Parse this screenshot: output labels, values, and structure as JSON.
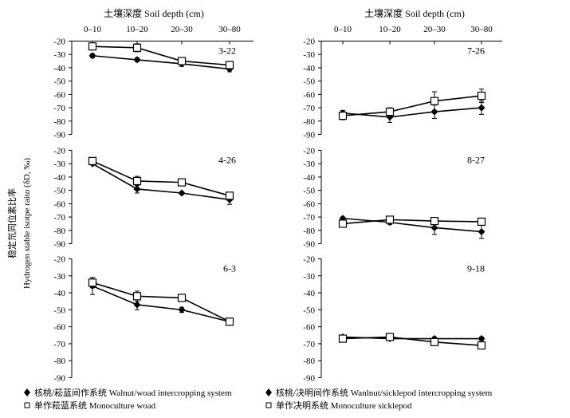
{
  "figure": {
    "y_axis_label_cn": "稳定氘同位素比率",
    "y_axis_label_en": "Hydrogen stable isotpe raito (δD, ‰)",
    "x_axis_title": "土壤深度 Soil depth (cm)"
  },
  "legend": {
    "items": [
      {
        "key": "walnut_woad",
        "marker": "filled-diamond",
        "label": "核桃/菘蓝间作系统 Walnut/woad intercropping system"
      },
      {
        "key": "walnut_sicklepod",
        "marker": "filled-diamond",
        "label": "核桃/决明间作系统 Wanlnut/sicklepod intercropping system"
      },
      {
        "key": "mono_woad",
        "marker": "open-square",
        "label": "单作菘蓝系统 Monoculture woad"
      },
      {
        "key": "mono_sicklepod",
        "marker": "open-square",
        "label": "单作决明系统 Monoculture sicklepod"
      }
    ]
  },
  "chart_data": [
    {
      "type": "line",
      "panel_label": "3-22",
      "categories": [
        "0–10",
        "10–20",
        "20–30",
        "30–80"
      ],
      "yticks": [
        "-20",
        "-30",
        "-40",
        "-50",
        "-60",
        "-70",
        "-80",
        "-90"
      ],
      "ylim": [
        -90,
        -20
      ],
      "y_ticks": [
        -20,
        -30,
        -40,
        -50,
        -60,
        -70,
        -80,
        -90
      ],
      "xlabel": "土壤深度 Soil depth (cm)",
      "series": [
        {
          "name": "核桃/菘蓝间作系统 Walnut/woad intercropping system",
          "marker": "diamond",
          "values": [
            -31,
            -34,
            -37,
            -41
          ],
          "errors": [
            1.5,
            1.5,
            2,
            2
          ]
        },
        {
          "name": "单作菘蓝系统 Monoculture woad",
          "marker": "square",
          "values": [
            -24,
            -25,
            -35,
            -38
          ],
          "errors": [
            1,
            3,
            1.5,
            1.5
          ]
        }
      ]
    },
    {
      "type": "line",
      "panel_label": "4-26",
      "categories": [
        "0–10",
        "10–20",
        "20–30",
        "30–80"
      ],
      "yticks": [
        "-20",
        "-30",
        "-40",
        "-50",
        "-60",
        "-70",
        "-80",
        "-90"
      ],
      "ylim": [
        -90,
        -20
      ],
      "y_ticks": [
        -20,
        -30,
        -40,
        -50,
        -60,
        -70,
        -80,
        -90
      ],
      "series": [
        {
          "name": "核桃/菘蓝间作系统 Walnut/woad intercropping system",
          "marker": "diamond",
          "values": [
            -30,
            -49,
            -52,
            -57
          ],
          "errors": [
            1,
            3,
            1,
            3.5
          ]
        },
        {
          "name": "单作菘蓝系统 Monoculture woad",
          "marker": "square",
          "values": [
            -28,
            -43,
            -44,
            -54
          ],
          "errors": [
            2,
            3.5,
            1.5,
            2
          ]
        }
      ]
    },
    {
      "type": "line",
      "panel_label": "6-3",
      "categories": [
        "0–10",
        "10–20",
        "20–30",
        "30–80"
      ],
      "yticks": [
        "-20",
        "-30",
        "-40",
        "-50",
        "-60",
        "-70",
        "-80",
        "-90"
      ],
      "ylim": [
        -90,
        -20
      ],
      "y_ticks": [
        -20,
        -30,
        -40,
        -50,
        -60,
        -70,
        -80,
        -90
      ],
      "series": [
        {
          "name": "核桃/菘蓝间作系统 Walnut/woad intercropping system",
          "marker": "diamond",
          "values": [
            -36,
            -47,
            -50,
            -57
          ],
          "errors": [
            5,
            3,
            1.5,
            1
          ]
        },
        {
          "name": "单作菘蓝系统 Monoculture woad",
          "marker": "square",
          "values": [
            -34,
            -42,
            -43,
            -57
          ],
          "errors": [
            3,
            3,
            1,
            1
          ]
        }
      ]
    },
    {
      "type": "line",
      "panel_label": "7-26",
      "categories": [
        "0–10",
        "10–20",
        "20–30",
        "30–80"
      ],
      "yticks": [
        "-20",
        "-30",
        "-40",
        "-50",
        "-60",
        "-70",
        "-80",
        "-90"
      ],
      "ylim": [
        -90,
        -20
      ],
      "y_ticks": [
        -20,
        -30,
        -40,
        -50,
        -60,
        -70,
        -80,
        -90
      ],
      "xlabel": "土壤深度 Soil depth (cm)",
      "series": [
        {
          "name": "核桃/决明间作系统 Wanlnut/sicklepod intercropping system",
          "marker": "diamond",
          "values": [
            -74,
            -77,
            -73,
            -70
          ],
          "errors": [
            2,
            4,
            5,
            5
          ]
        },
        {
          "name": "单作决明系统 Monoculture sicklepod",
          "marker": "square",
          "values": [
            -76,
            -73,
            -65,
            -61
          ],
          "errors": [
            3,
            3,
            7,
            5
          ]
        }
      ]
    },
    {
      "type": "line",
      "panel_label": "8-27",
      "categories": [
        "0–10",
        "10–20",
        "20–30",
        "30–80"
      ],
      "yticks": [
        "-20",
        "-30",
        "-40",
        "-50",
        "-60",
        "-70",
        "-80",
        "-90"
      ],
      "ylim": [
        -90,
        -20
      ],
      "y_ticks": [
        -20,
        -30,
        -40,
        -50,
        -60,
        -70,
        -80,
        -90
      ],
      "series": [
        {
          "name": "核桃/决明间作系统 Wanlnut/sicklepod intercropping system",
          "marker": "diamond",
          "values": [
            -71,
            -74,
            -78,
            -81
          ],
          "errors": [
            1,
            1.5,
            5,
            5
          ]
        },
        {
          "name": "单作决明系统 Monoculture sicklepod",
          "marker": "square",
          "values": [
            -75,
            -72,
            -73,
            -73.5
          ],
          "errors": [
            1.5,
            1.5,
            1,
            1
          ]
        }
      ]
    },
    {
      "type": "line",
      "panel_label": "9-18",
      "categories": [
        "0–10",
        "10–20",
        "20–30",
        "30–80"
      ],
      "yticks": [
        "-20",
        "-30",
        "-40",
        "-50",
        "-60",
        "-70",
        "-80",
        "-90"
      ],
      "ylim": [
        -90,
        -20
      ],
      "y_ticks": [
        -20,
        -30,
        -40,
        -50,
        -60,
        -70,
        -80,
        -90
      ],
      "series": [
        {
          "name": "核桃/决明间作系统 Wanlnut/sicklepod intercropping system",
          "marker": "diamond",
          "values": [
            -66,
            -67,
            -67,
            -67
          ],
          "errors": [
            1,
            1,
            1,
            1
          ]
        },
        {
          "name": "单作决明系统 Monoculture sicklepod",
          "marker": "square",
          "values": [
            -67,
            -66,
            -69,
            -71
          ],
          "errors": [
            1.5,
            1.5,
            1.5,
            1.5
          ]
        }
      ]
    }
  ]
}
